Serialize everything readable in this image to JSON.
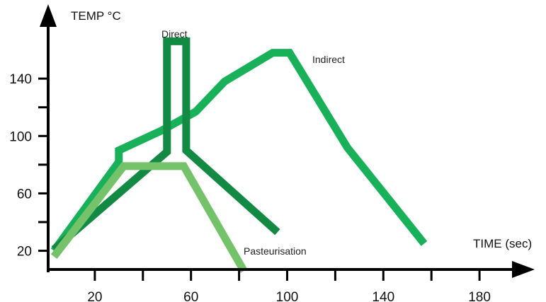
{
  "chart_data": {
    "type": "line",
    "title": "",
    "xlabel": "TIME (sec)",
    "ylabel": "TEMP °C",
    "xlim": [
      0,
      200
    ],
    "ylim": [
      5,
      180
    ],
    "x_ticks": [
      20,
      60,
      100,
      140,
      180
    ],
    "x_minor_ticks": [
      0,
      40,
      80,
      120,
      160
    ],
    "y_ticks": [
      20,
      60,
      100,
      140
    ],
    "y_minor_ticks": [
      40,
      80,
      120
    ],
    "grid": false,
    "legend": "none (series labelled inline)",
    "series": [
      {
        "name": "Indirect",
        "color": "#18b15a",
        "x": [
          3,
          30,
          30,
          48,
          62,
          74,
          94,
          101,
          125,
          157
        ],
        "y": [
          20,
          82,
          90,
          104,
          117,
          138,
          158,
          158,
          92,
          25
        ]
      },
      {
        "name": "Direct",
        "color": "#138a44",
        "x": [
          3,
          50,
          50,
          58,
          58,
          96
        ],
        "y": [
          21,
          89,
          166,
          166,
          90,
          33
        ]
      },
      {
        "name": "Pasteurisation",
        "color": "#74c36a",
        "x": [
          3,
          32,
          57,
          82
        ],
        "y": [
          16,
          79,
          79,
          6
        ]
      }
    ]
  }
}
